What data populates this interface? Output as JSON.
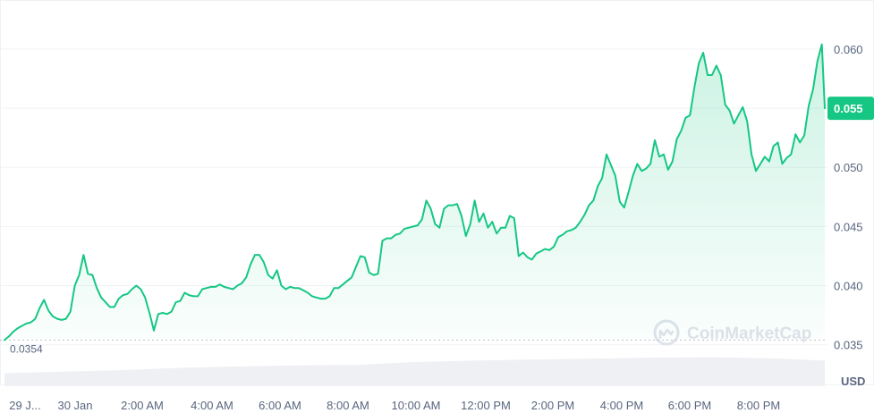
{
  "chart_data": {
    "type": "area",
    "x_ticks": [
      "29 J...",
      "30 Jan",
      "2:00 AM",
      "4:00 AM",
      "6:00 AM",
      "8:00 AM",
      "10:00 AM",
      "12:00 PM",
      "2:00 PM",
      "4:00 PM",
      "6:00 PM",
      "8:00 PM"
    ],
    "y_ticks": [
      "0.060",
      "0.055",
      "0.050",
      "0.045",
      "0.040",
      "0.035"
    ],
    "ylim": [
      0.0315,
      0.064
    ],
    "y_unit": "USD",
    "baseline_value": 0.0354,
    "baseline_label": "0.0354",
    "current_value": 0.055,
    "current_label": "0.055",
    "grid": true,
    "colors": {
      "line": "#16c784",
      "fill_top": "#16c784",
      "baseline": "#b8bfca",
      "grid": "#eff2f5",
      "text": "#58667e",
      "volume": "#eef0f3"
    },
    "watermark": "CoinMarketCap",
    "x_range": [
      0,
      56
    ],
    "prices": [
      [
        0.0,
        0.0354
      ],
      [
        0.3,
        0.0357
      ],
      [
        0.6,
        0.0361
      ],
      [
        0.9,
        0.0364
      ],
      [
        1.2,
        0.0366
      ],
      [
        1.5,
        0.0368
      ],
      [
        1.8,
        0.0369
      ],
      [
        2.1,
        0.0372
      ],
      [
        2.4,
        0.0381
      ],
      [
        2.7,
        0.0388
      ],
      [
        3.0,
        0.0379
      ],
      [
        3.3,
        0.0374
      ],
      [
        3.6,
        0.0372
      ],
      [
        3.9,
        0.0371
      ],
      [
        4.2,
        0.0372
      ],
      [
        4.5,
        0.0378
      ],
      [
        4.8,
        0.04
      ],
      [
        5.1,
        0.0409
      ],
      [
        5.4,
        0.0426
      ],
      [
        5.7,
        0.041
      ],
      [
        6.0,
        0.0409
      ],
      [
        6.3,
        0.0398
      ],
      [
        6.6,
        0.039
      ],
      [
        6.9,
        0.0386
      ],
      [
        7.2,
        0.0382
      ],
      [
        7.5,
        0.0382
      ],
      [
        7.8,
        0.0389
      ],
      [
        8.1,
        0.0392
      ],
      [
        8.4,
        0.0393
      ],
      [
        8.7,
        0.0397
      ],
      [
        9.0,
        0.04
      ],
      [
        9.3,
        0.0397
      ],
      [
        9.6,
        0.039
      ],
      [
        9.9,
        0.0377
      ],
      [
        10.2,
        0.0362
      ],
      [
        10.5,
        0.0376
      ],
      [
        10.8,
        0.0377
      ],
      [
        11.1,
        0.0376
      ],
      [
        11.4,
        0.0378
      ],
      [
        11.7,
        0.0386
      ],
      [
        12.0,
        0.0387
      ],
      [
        12.3,
        0.0394
      ],
      [
        12.6,
        0.0392
      ],
      [
        12.9,
        0.0391
      ],
      [
        13.2,
        0.0391
      ],
      [
        13.5,
        0.0397
      ],
      [
        13.8,
        0.0398
      ],
      [
        14.1,
        0.0399
      ],
      [
        14.4,
        0.0399
      ],
      [
        14.7,
        0.0401
      ],
      [
        15.0,
        0.0399
      ],
      [
        15.3,
        0.0398
      ],
      [
        15.6,
        0.0397
      ],
      [
        15.9,
        0.04
      ],
      [
        16.2,
        0.0402
      ],
      [
        16.5,
        0.0407
      ],
      [
        16.8,
        0.0418
      ],
      [
        17.1,
        0.0426
      ],
      [
        17.4,
        0.0426
      ],
      [
        17.7,
        0.042
      ],
      [
        18.0,
        0.0409
      ],
      [
        18.3,
        0.0406
      ],
      [
        18.6,
        0.0413
      ],
      [
        18.9,
        0.04
      ],
      [
        19.2,
        0.0397
      ],
      [
        19.5,
        0.0399
      ],
      [
        19.8,
        0.0398
      ],
      [
        20.1,
        0.0398
      ],
      [
        20.4,
        0.0396
      ],
      [
        20.7,
        0.0394
      ],
      [
        21.0,
        0.0391
      ],
      [
        21.3,
        0.039
      ],
      [
        21.6,
        0.0389
      ],
      [
        21.9,
        0.0389
      ],
      [
        22.2,
        0.0391
      ],
      [
        22.5,
        0.0398
      ],
      [
        22.8,
        0.0398
      ],
      [
        23.1,
        0.0401
      ],
      [
        23.4,
        0.0404
      ],
      [
        23.7,
        0.0407
      ],
      [
        24.0,
        0.0416
      ],
      [
        24.3,
        0.0425
      ],
      [
        24.6,
        0.0424
      ],
      [
        24.9,
        0.0411
      ],
      [
        25.2,
        0.0409
      ],
      [
        25.5,
        0.041
      ],
      [
        25.8,
        0.0438
      ],
      [
        26.1,
        0.044
      ],
      [
        26.4,
        0.044
      ],
      [
        26.7,
        0.0443
      ],
      [
        27.0,
        0.0444
      ],
      [
        27.3,
        0.0448
      ],
      [
        27.6,
        0.0449
      ],
      [
        27.9,
        0.045
      ],
      [
        28.2,
        0.0451
      ],
      [
        28.5,
        0.0456
      ],
      [
        28.8,
        0.0472
      ],
      [
        29.1,
        0.0465
      ],
      [
        29.4,
        0.0452
      ],
      [
        29.7,
        0.0449
      ],
      [
        30.0,
        0.0465
      ],
      [
        30.3,
        0.0468
      ],
      [
        30.6,
        0.0468
      ],
      [
        30.9,
        0.0469
      ],
      [
        31.2,
        0.0459
      ],
      [
        31.5,
        0.0442
      ],
      [
        31.8,
        0.0452
      ],
      [
        32.1,
        0.0472
      ],
      [
        32.4,
        0.0454
      ],
      [
        32.7,
        0.0461
      ],
      [
        33.0,
        0.0449
      ],
      [
        33.3,
        0.0454
      ],
      [
        33.6,
        0.0444
      ],
      [
        33.9,
        0.0449
      ],
      [
        34.2,
        0.0449
      ],
      [
        34.5,
        0.0459
      ],
      [
        34.8,
        0.0457
      ],
      [
        35.1,
        0.0425
      ],
      [
        35.4,
        0.0428
      ],
      [
        35.7,
        0.0424
      ],
      [
        36.0,
        0.0422
      ],
      [
        36.3,
        0.0427
      ],
      [
        36.6,
        0.0429
      ],
      [
        36.9,
        0.0431
      ],
      [
        37.2,
        0.043
      ],
      [
        37.5,
        0.0433
      ],
      [
        37.8,
        0.0441
      ],
      [
        38.1,
        0.0443
      ],
      [
        38.4,
        0.0446
      ],
      [
        38.7,
        0.0447
      ],
      [
        39.0,
        0.0449
      ],
      [
        39.3,
        0.0454
      ],
      [
        39.6,
        0.046
      ],
      [
        39.9,
        0.0468
      ],
      [
        40.2,
        0.0472
      ],
      [
        40.5,
        0.0484
      ],
      [
        40.8,
        0.0491
      ],
      [
        41.1,
        0.0511
      ],
      [
        41.4,
        0.0502
      ],
      [
        41.7,
        0.0493
      ],
      [
        42.0,
        0.0471
      ],
      [
        42.3,
        0.0466
      ],
      [
        42.6,
        0.0479
      ],
      [
        42.9,
        0.0493
      ],
      [
        43.2,
        0.0503
      ],
      [
        43.5,
        0.0497
      ],
      [
        43.8,
        0.0499
      ],
      [
        44.1,
        0.0503
      ],
      [
        44.4,
        0.0523
      ],
      [
        44.7,
        0.0509
      ],
      [
        45.0,
        0.0511
      ],
      [
        45.3,
        0.0498
      ],
      [
        45.6,
        0.0505
      ],
      [
        45.9,
        0.0524
      ],
      [
        46.2,
        0.0531
      ],
      [
        46.5,
        0.0542
      ],
      [
        46.8,
        0.0544
      ],
      [
        47.1,
        0.0568
      ],
      [
        47.4,
        0.0588
      ],
      [
        47.7,
        0.0597
      ],
      [
        48.0,
        0.0578
      ],
      [
        48.3,
        0.0578
      ],
      [
        48.6,
        0.0586
      ],
      [
        48.9,
        0.0578
      ],
      [
        49.2,
        0.0553
      ],
      [
        49.5,
        0.0548
      ],
      [
        49.8,
        0.0537
      ],
      [
        50.1,
        0.0544
      ],
      [
        50.4,
        0.0551
      ],
      [
        50.7,
        0.0539
      ],
      [
        51.0,
        0.0511
      ],
      [
        51.3,
        0.0497
      ],
      [
        51.6,
        0.0503
      ],
      [
        51.9,
        0.0509
      ],
      [
        52.2,
        0.0505
      ],
      [
        52.5,
        0.0518
      ],
      [
        52.8,
        0.0521
      ],
      [
        53.1,
        0.0503
      ],
      [
        53.4,
        0.0508
      ],
      [
        53.7,
        0.0511
      ],
      [
        54.0,
        0.0528
      ],
      [
        54.3,
        0.0521
      ],
      [
        54.6,
        0.0527
      ],
      [
        54.9,
        0.0552
      ],
      [
        55.2,
        0.0566
      ],
      [
        55.5,
        0.059
      ],
      [
        55.8,
        0.0604
      ],
      [
        56.0,
        0.055
      ]
    ],
    "volume": [
      [
        0,
        0.27
      ],
      [
        4,
        0.3
      ],
      [
        8,
        0.33
      ],
      [
        12,
        0.38
      ],
      [
        16,
        0.41
      ],
      [
        20,
        0.43
      ],
      [
        24,
        0.44
      ],
      [
        28,
        0.5
      ],
      [
        32,
        0.53
      ],
      [
        36,
        0.55
      ],
      [
        40,
        0.57
      ],
      [
        44,
        0.59
      ],
      [
        48,
        0.6
      ],
      [
        52,
        0.58
      ],
      [
        56,
        0.53
      ]
    ]
  }
}
